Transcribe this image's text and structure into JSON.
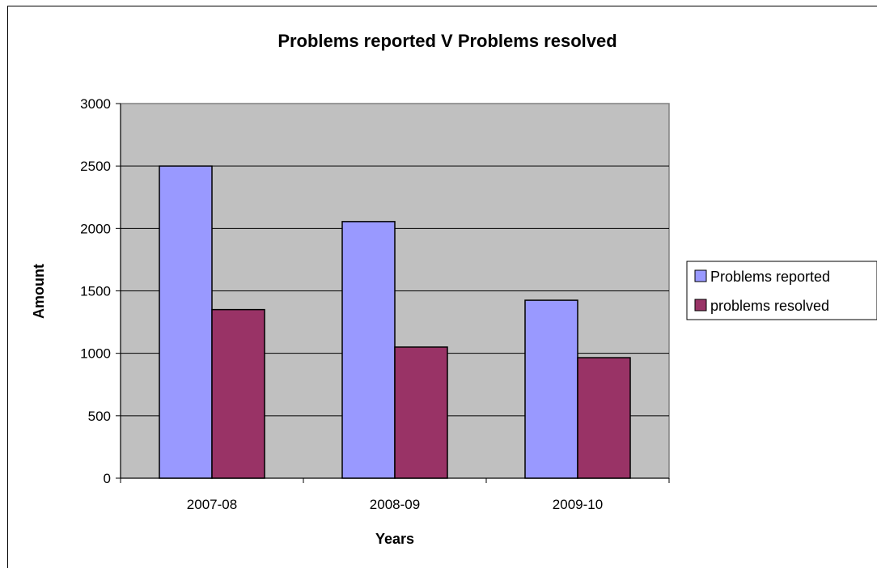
{
  "chart_data": {
    "type": "bar",
    "title": "Problems reported V Problems resolved",
    "xlabel": "Years",
    "ylabel": "Amount",
    "categories": [
      "2007-08",
      "2008-09",
      "2009-10"
    ],
    "series": [
      {
        "name": "Problems reported",
        "values": [
          2500,
          2055,
          1425
        ],
        "color": "#9999ff"
      },
      {
        "name": "problems resolved",
        "values": [
          1350,
          1050,
          965
        ],
        "color": "#993366"
      }
    ],
    "ylim": [
      0,
      3000
    ],
    "yticks": [
      0,
      500,
      1000,
      1500,
      2000,
      2500,
      3000
    ],
    "grid": true,
    "plot_background": "#c0c0c0",
    "legend_position": "right"
  }
}
